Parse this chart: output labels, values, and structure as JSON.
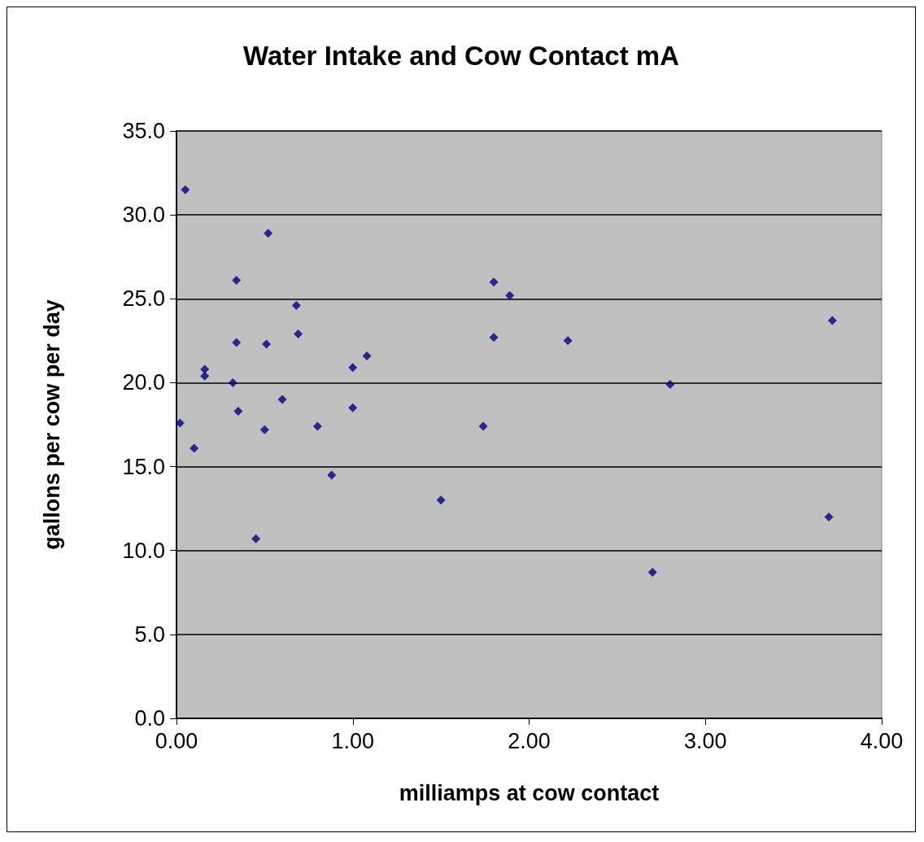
{
  "chart_data": {
    "type": "scatter",
    "title": "Water Intake and Cow Contact mA",
    "xlabel": "milliamps at cow contact",
    "ylabel": "gallons per cow per day",
    "x": [
      0.05,
      0.52,
      0.34,
      0.68,
      0.69,
      0.34,
      0.51,
      0.16,
      0.16,
      0.32,
      0.6,
      0.35,
      0.02,
      0.5,
      0.8,
      0.1,
      1.0,
      1.08,
      1.0,
      0.88,
      1.5,
      0.45,
      1.8,
      1.89,
      1.8,
      1.74,
      2.22,
      2.8,
      2.7,
      3.72,
      3.7
    ],
    "values": [
      31.5,
      28.9,
      26.1,
      24.6,
      22.9,
      22.4,
      22.3,
      20.8,
      20.4,
      20.0,
      19.0,
      18.3,
      17.6,
      17.2,
      17.4,
      16.1,
      20.9,
      21.6,
      18.5,
      14.5,
      13.0,
      10.7,
      26.0,
      25.2,
      22.7,
      17.4,
      22.5,
      19.9,
      8.7,
      23.7,
      12.0
    ],
    "color": "#000080",
    "marker": "diamond",
    "grid": "y",
    "xlim": [
      0,
      4
    ],
    "xticks": [
      {
        "value": 0,
        "label": "0.00"
      },
      {
        "value": 1,
        "label": "1.00"
      },
      {
        "value": 2,
        "label": "2.00"
      },
      {
        "value": 3,
        "label": "3.00"
      },
      {
        "value": 4,
        "label": "4.00"
      }
    ],
    "ylim": [
      0,
      35
    ],
    "yticks": [
      {
        "value": 0,
        "label": "0.0"
      },
      {
        "value": 5,
        "label": "5.0"
      },
      {
        "value": 10,
        "label": "10.0"
      },
      {
        "value": 15,
        "label": "15.0"
      },
      {
        "value": 20,
        "label": "20.0"
      },
      {
        "value": 25,
        "label": "25.0"
      },
      {
        "value": 30,
        "label": "30.0"
      },
      {
        "value": 35,
        "label": "35.0"
      }
    ]
  }
}
